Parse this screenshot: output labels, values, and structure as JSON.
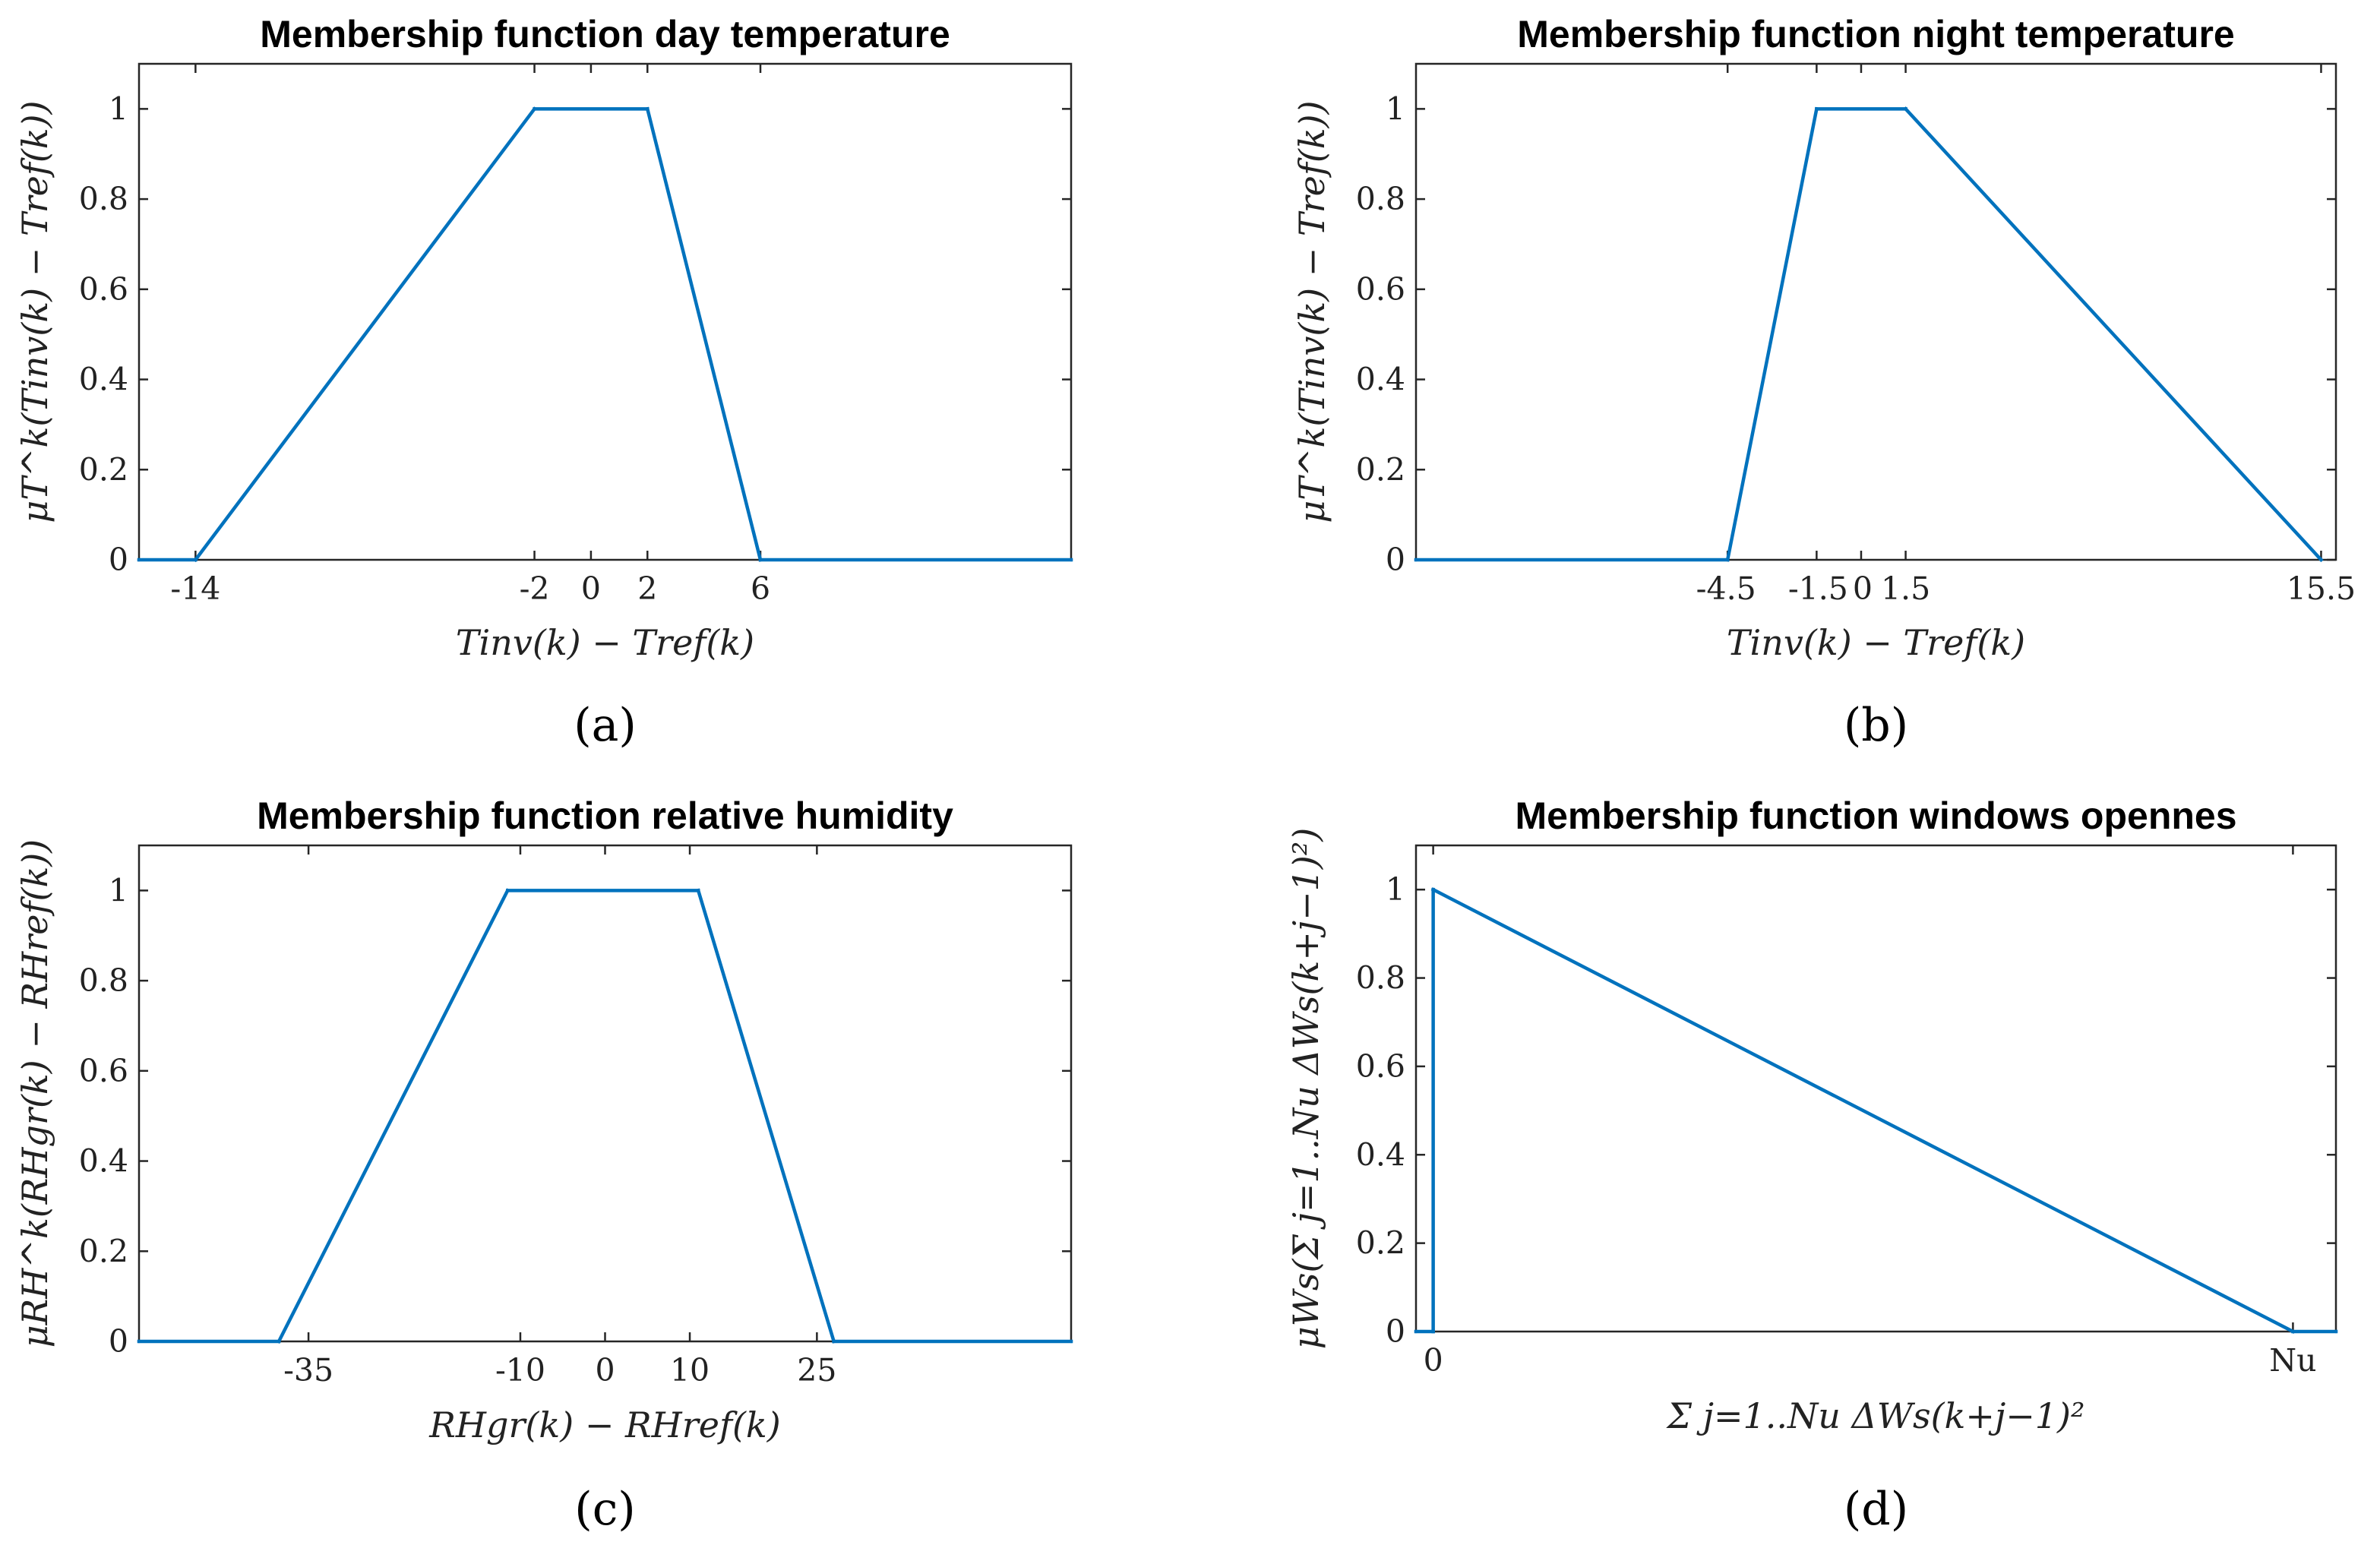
{
  "colors": {
    "series": "#0072BD",
    "axis": "#262626"
  },
  "chart_data": [
    {
      "type": "line",
      "panel_label": "(a)",
      "title": "Membership function day temperature",
      "xlabel": "Tinv(k) − Tref(k)",
      "ylabel": "μT^k(Tinv(k) − Tref(k))",
      "xlim": [
        -16,
        17
      ],
      "ylim": [
        0,
        1.1
      ],
      "xticks": [
        -14,
        -2,
        0,
        2,
        6
      ],
      "xtick_labels": [
        "-14",
        "-2",
        "0",
        "2",
        "6"
      ],
      "yticks": [
        0,
        0.2,
        0.4,
        0.6,
        0.8,
        1
      ],
      "ytick_labels": [
        "0",
        "0.2",
        "0.4",
        "0.6",
        "0.8",
        "1"
      ],
      "x": [
        -16,
        -14,
        -2,
        2,
        6,
        17
      ],
      "y": [
        0,
        0,
        1,
        1,
        0,
        0
      ]
    },
    {
      "type": "line",
      "panel_label": "(b)",
      "title": "Membership function night temperature",
      "xlabel": "Tinv(k) − Tref(k)",
      "ylabel": "μT^k(Tinv(k) − Tref(k))",
      "xlim": [
        -15,
        16
      ],
      "ylim": [
        0,
        1.1
      ],
      "xticks": [
        -4.5,
        -1.5,
        0,
        1.5,
        15.5
      ],
      "xtick_labels": [
        "-4.5",
        "-1.5",
        "0",
        "1.5",
        "15.5"
      ],
      "yticks": [
        0,
        0.2,
        0.4,
        0.6,
        0.8,
        1
      ],
      "ytick_labels": [
        "0",
        "0.2",
        "0.4",
        "0.6",
        "0.8",
        "1"
      ],
      "x": [
        -15,
        -4.5,
        -1.5,
        1.5,
        15.5
      ],
      "y": [
        0,
        0,
        1,
        1,
        0
      ]
    },
    {
      "type": "line",
      "panel_label": "(c)",
      "title": "Membership function relative humidity",
      "xlabel": "RHgr(k) − RHref(k)",
      "ylabel": "μRH^k(RHgr(k) − RHref(k))",
      "xlim": [
        -55,
        55
      ],
      "ylim": [
        0,
        1.1
      ],
      "xticks": [
        -35,
        -10,
        0,
        10,
        25
      ],
      "xtick_labels": [
        "-35",
        "-10",
        "0",
        "10",
        "25"
      ],
      "yticks": [
        0,
        0.2,
        0.4,
        0.6,
        0.8,
        1
      ],
      "ytick_labels": [
        "0",
        "0.2",
        "0.4",
        "0.6",
        "0.8",
        "1"
      ],
      "x": [
        -55,
        -38.5,
        -11.5,
        11,
        27,
        55
      ],
      "y": [
        0,
        0,
        1,
        1,
        0,
        0
      ]
    },
    {
      "type": "line",
      "panel_label": "(d)",
      "title": "Membership function windows opennes",
      "xlabel": "Σ j=1..Nu ΔWs(k+j−1)²",
      "ylabel": "μWs(Σ j=1..Nu ΔWs(k+j−1)²)",
      "xlim": [
        -0.02,
        1.05
      ],
      "ylim": [
        0,
        1.1
      ],
      "xticks": [
        0,
        1
      ],
      "xtick_labels": [
        "0",
        "Nu"
      ],
      "yticks": [
        0,
        0.2,
        0.4,
        0.6,
        0.8,
        1
      ],
      "ytick_labels": [
        "0",
        "0.2",
        "0.4",
        "0.6",
        "0.8",
        "1"
      ],
      "x": [
        -0.02,
        0,
        0,
        1,
        1.05
      ],
      "y": [
        0,
        0,
        1,
        0,
        0
      ]
    }
  ]
}
